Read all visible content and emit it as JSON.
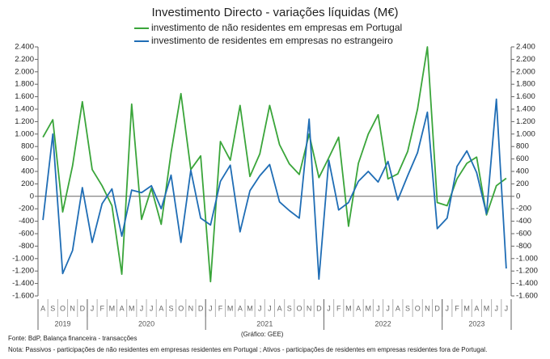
{
  "chart_data": {
    "type": "line",
    "title": "Investimento Directo - variações líquidas (M€)",
    "categories": [
      "A",
      "S",
      "O",
      "N",
      "D",
      "J",
      "F",
      "M",
      "A",
      "M",
      "J",
      "J",
      "A",
      "S",
      "O",
      "N",
      "D",
      "J",
      "F",
      "M",
      "A",
      "M",
      "J",
      "J",
      "A",
      "S",
      "O",
      "N",
      "D",
      "J",
      "F",
      "M",
      "A",
      "M",
      "J",
      "J",
      "A",
      "S",
      "O",
      "N",
      "D",
      "J",
      "F",
      "M",
      "A",
      "M",
      "J",
      "J"
    ],
    "year_labels": [
      "2019",
      "2020",
      "2021",
      "2022",
      "2023"
    ],
    "series": [
      {
        "name": "investimento de não residentes em empresas em Portugal",
        "color": "#3aa53a",
        "values": [
          950,
          1230,
          -250,
          490,
          1520,
          430,
          170,
          -150,
          -1250,
          1480,
          -370,
          130,
          -450,
          700,
          1650,
          430,
          650,
          -1370,
          880,
          580,
          1460,
          320,
          680,
          1460,
          830,
          520,
          350,
          1000,
          300,
          620,
          950,
          -480,
          530,
          1000,
          1310,
          280,
          360,
          720,
          1400,
          2400,
          -100,
          -150,
          280,
          530,
          630,
          -300,
          170,
          290
        ]
      },
      {
        "name": "investimento de residentes em empresas no estrangeiro",
        "color": "#1f6db5",
        "values": [
          -380,
          1000,
          -1240,
          -870,
          140,
          -740,
          -120,
          120,
          -640,
          100,
          60,
          170,
          -200,
          340,
          -740,
          420,
          -350,
          -460,
          240,
          500,
          -570,
          90,
          330,
          510,
          -90,
          -230,
          -350,
          1240,
          -1330,
          580,
          -220,
          -100,
          240,
          400,
          230,
          560,
          -60,
          330,
          700,
          1350,
          -520,
          -350,
          480,
          730,
          380,
          -280,
          1560,
          -1160
        ]
      }
    ],
    "ylim": [
      -1600,
      2400
    ],
    "yticks": [
      {
        "value": -1600,
        "label": "-1.600"
      },
      {
        "value": -1400,
        "label": "-1.400"
      },
      {
        "value": -1200,
        "label": "-1.200"
      },
      {
        "value": -1000,
        "label": "-1.000"
      },
      -800,
      -600,
      -400,
      -200,
      0,
      200,
      400,
      600,
      800,
      {
        "value": 1000,
        "label": "1.000"
      },
      {
        "value": 1200,
        "label": "1.200"
      },
      {
        "value": 1400,
        "label": "1.400"
      },
      {
        "value": 1600,
        "label": "1.600"
      },
      {
        "value": 1800,
        "label": "1.800"
      },
      {
        "value": 2000,
        "label": "2.000"
      },
      {
        "value": 2200,
        "label": "2.200"
      },
      {
        "value": 2400,
        "label": "2.400"
      }
    ],
    "y2lim": [
      -1600,
      2400
    ],
    "y2ticks": [
      {
        "value": -1600,
        "label": "-1.600"
      },
      {
        "value": -1400,
        "label": "-1.400"
      },
      {
        "value": -1200,
        "label": "-1.200"
      },
      {
        "value": -1000,
        "label": "-1.000"
      },
      -800,
      -600,
      -400,
      -200,
      0,
      200,
      400,
      600,
      800,
      {
        "value": 1000,
        "label": "1.000"
      },
      {
        "value": 1200,
        "label": "1.200"
      },
      {
        "value": 1400,
        "label": "1.400"
      },
      {
        "value": 1600,
        "label": "1.600"
      },
      {
        "value": 1800,
        "label": "1.800"
      },
      {
        "value": 2000,
        "label": "2.000"
      },
      {
        "value": 2200,
        "label": "2.200"
      },
      {
        "value": 2400,
        "label": "2.400"
      }
    ],
    "grid": false,
    "source": "Fonte: BdP, Balança financeira - transacções",
    "credit": "(Gráfico: GEE)",
    "note": "Nota: Passivos - participações de não residentes em empresas residentes em Portugal ; Ativos - participações de residentes em empresas residentes fora de Portugal."
  }
}
